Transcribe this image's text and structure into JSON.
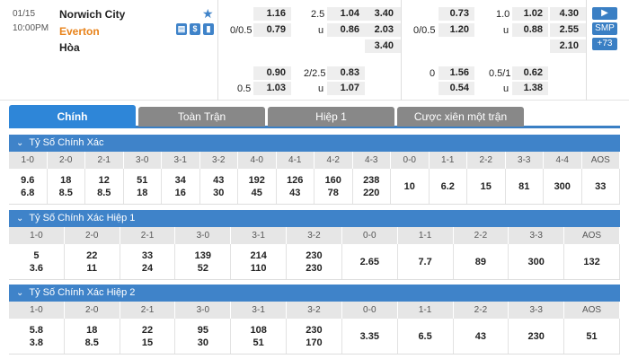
{
  "match": {
    "date": "01/15",
    "time": "10:00PM",
    "home": "Norwich City",
    "away": "Everton",
    "draw": "Hòa",
    "star": "★",
    "icons": [
      {
        "name": "stats-icon",
        "glyph": "▤"
      },
      {
        "name": "dollar-icon",
        "glyph": "$"
      },
      {
        "name": "chart-icon",
        "glyph": "▮"
      }
    ]
  },
  "odds": {
    "ft": {
      "hdp_home": "1.16",
      "hdp_line2": "0/0.5",
      "hdp_away": "0.79",
      "ou_line": "2.5",
      "ou_over": "1.04",
      "ou_u": "u",
      "ou_under": "0.86",
      "x1": "3.40",
      "x2": "2.03",
      "x3": "3.40",
      "hdp2_home": "0.90",
      "hdp2_line": "0.5",
      "hdp2_away": "1.03",
      "ou2_line": "2/2.5",
      "ou2_over": "0.83",
      "ou2_u": "u",
      "ou2_under": "1.07"
    },
    "ht": {
      "hdp_home": "0.73",
      "hdp_line2": "0/0.5",
      "hdp_away": "1.20",
      "ou_line": "1.0",
      "ou_over": "1.02",
      "ou_u": "u",
      "ou_under": "0.88",
      "x1": "4.30",
      "x2": "2.55",
      "x3": "2.10",
      "hdp2_line": "0",
      "hdp2_home": "1.56",
      "hdp2_away": "0.54",
      "ou2_line": "0.5/1",
      "ou2_over": "0.62",
      "ou2_u": "u",
      "ou2_under": "1.38"
    },
    "buttons": {
      "arrow": "▶",
      "smp": "SMP",
      "more": "+73"
    }
  },
  "tabs": [
    "Chính",
    "Toàn Trận",
    "Hiệp 1",
    "Cược xiên một trận"
  ],
  "sections": [
    {
      "title": "Tỷ Số Chính Xác",
      "chevron": "⌄",
      "headers": [
        "1-0",
        "2-0",
        "2-1",
        "3-0",
        "3-1",
        "3-2",
        "4-0",
        "4-1",
        "4-2",
        "4-3",
        "0-0",
        "1-1",
        "2-2",
        "3-3",
        "4-4",
        "AOS"
      ],
      "values": [
        [
          "9.6",
          "6.8"
        ],
        [
          "18",
          "8.5"
        ],
        [
          "12",
          "8.5"
        ],
        [
          "51",
          "18"
        ],
        [
          "34",
          "16"
        ],
        [
          "43",
          "30"
        ],
        [
          "192",
          "45"
        ],
        [
          "126",
          "43"
        ],
        [
          "160",
          "78"
        ],
        [
          "238",
          "220"
        ],
        [
          "10"
        ],
        [
          "6.2"
        ],
        [
          "15"
        ],
        [
          "81"
        ],
        [
          "300"
        ],
        [
          "33"
        ]
      ]
    },
    {
      "title": "Tỷ Số Chính Xác Hiệp 1",
      "chevron": "⌄",
      "headers": [
        "1-0",
        "2-0",
        "2-1",
        "3-0",
        "3-1",
        "3-2",
        "0-0",
        "1-1",
        "2-2",
        "3-3",
        "AOS"
      ],
      "values": [
        [
          "5",
          "3.6"
        ],
        [
          "22",
          "11"
        ],
        [
          "33",
          "24"
        ],
        [
          "139",
          "52"
        ],
        [
          "214",
          "110"
        ],
        [
          "230",
          "230"
        ],
        [
          "2.65"
        ],
        [
          "7.7"
        ],
        [
          "89"
        ],
        [
          "300"
        ],
        [
          "132"
        ]
      ]
    },
    {
      "title": "Tỷ Số Chính Xác Hiệp 2",
      "chevron": "⌄",
      "headers": [
        "1-0",
        "2-0",
        "2-1",
        "3-0",
        "3-1",
        "3-2",
        "0-0",
        "1-1",
        "2-2",
        "3-3",
        "AOS"
      ],
      "values": [
        [
          "5.8",
          "3.8"
        ],
        [
          "18",
          "8.5"
        ],
        [
          "22",
          "15"
        ],
        [
          "95",
          "30"
        ],
        [
          "108",
          "51"
        ],
        [
          "230",
          "170"
        ],
        [
          "3.35"
        ],
        [
          "6.5"
        ],
        [
          "43"
        ],
        [
          "230"
        ],
        [
          "51"
        ]
      ]
    }
  ]
}
